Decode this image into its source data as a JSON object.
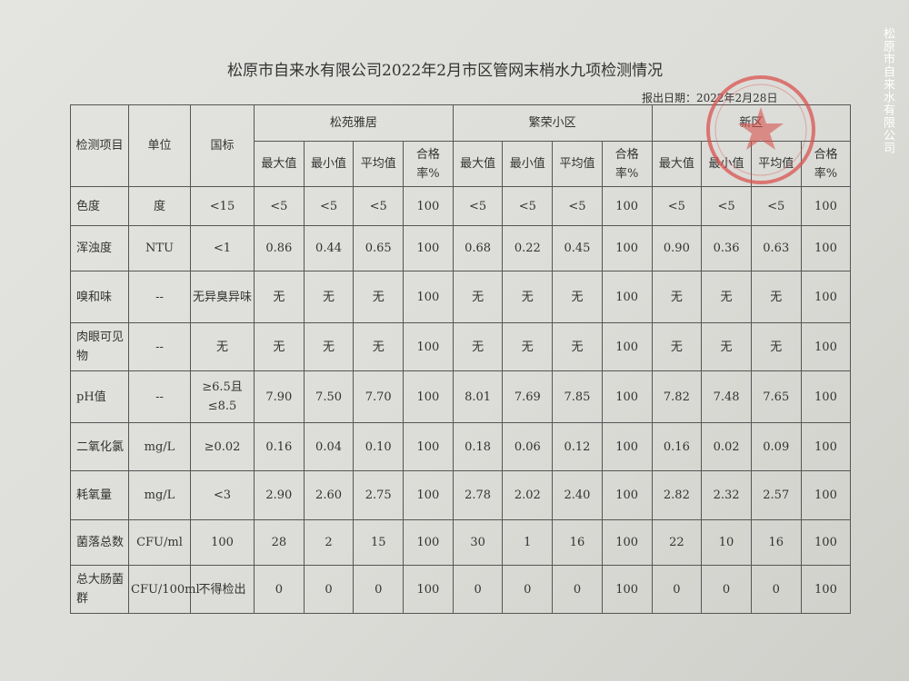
{
  "title": "松原市自来水有限公司2022年2月市区管网末梢水九项检测情况",
  "report_date": "报出日期：2022年2月28日",
  "watermark": "松原市自来水有限公司",
  "stamp": {
    "text": "松原市自来水有限公司",
    "color": "#d9534f"
  },
  "header": {
    "item": "检测项目",
    "unit": "单位",
    "standard": "国标",
    "sites": [
      "松苑雅居",
      "繁荣小区",
      "新区"
    ],
    "sub": [
      "最大值",
      "最小值",
      "平均值",
      "合格率%"
    ]
  },
  "rows": [
    {
      "item": "色度",
      "unit": "度",
      "standard": "<15",
      "values": [
        "<5",
        "<5",
        "<5",
        "100",
        "<5",
        "<5",
        "<5",
        "100",
        "<5",
        "<5",
        "<5",
        "100"
      ]
    },
    {
      "item": "浑浊度",
      "unit": "NTU",
      "standard": "<1",
      "values": [
        "0.86",
        "0.44",
        "0.65",
        "100",
        "0.68",
        "0.22",
        "0.45",
        "100",
        "0.90",
        "0.36",
        "0.63",
        "100"
      ]
    },
    {
      "item": "嗅和味",
      "unit": "--",
      "standard": "无异臭异味",
      "values": [
        "无",
        "无",
        "无",
        "100",
        "无",
        "无",
        "无",
        "100",
        "无",
        "无",
        "无",
        "100"
      ]
    },
    {
      "item": "肉眼可见物",
      "unit": "--",
      "standard": "无",
      "values": [
        "无",
        "无",
        "无",
        "100",
        "无",
        "无",
        "无",
        "100",
        "无",
        "无",
        "无",
        "100"
      ]
    },
    {
      "item": "pH值",
      "unit": "--",
      "standard": "≥6.5且≤8.5",
      "values": [
        "7.90",
        "7.50",
        "7.70",
        "100",
        "8.01",
        "7.69",
        "7.85",
        "100",
        "7.82",
        "7.48",
        "7.65",
        "100"
      ]
    },
    {
      "item": "二氧化氯",
      "unit": "mg/L",
      "standard": "≥0.02",
      "values": [
        "0.16",
        "0.04",
        "0.10",
        "100",
        "0.18",
        "0.06",
        "0.12",
        "100",
        "0.16",
        "0.02",
        "0.09",
        "100"
      ]
    },
    {
      "item": "耗氧量",
      "unit": "mg/L",
      "standard": "<3",
      "values": [
        "2.90",
        "2.60",
        "2.75",
        "100",
        "2.78",
        "2.02",
        "2.40",
        "100",
        "2.82",
        "2.32",
        "2.57",
        "100"
      ]
    },
    {
      "item": "菌落总数",
      "unit": "CFU/ml",
      "standard": "100",
      "values": [
        "28",
        "2",
        "15",
        "100",
        "30",
        "1",
        "16",
        "100",
        "22",
        "10",
        "16",
        "100"
      ]
    },
    {
      "item": "总大肠菌群",
      "unit": "CFU/100ml",
      "standard": "不得检出",
      "values": [
        "0",
        "0",
        "0",
        "100",
        "0",
        "0",
        "0",
        "100",
        "0",
        "0",
        "0",
        "100"
      ]
    }
  ]
}
